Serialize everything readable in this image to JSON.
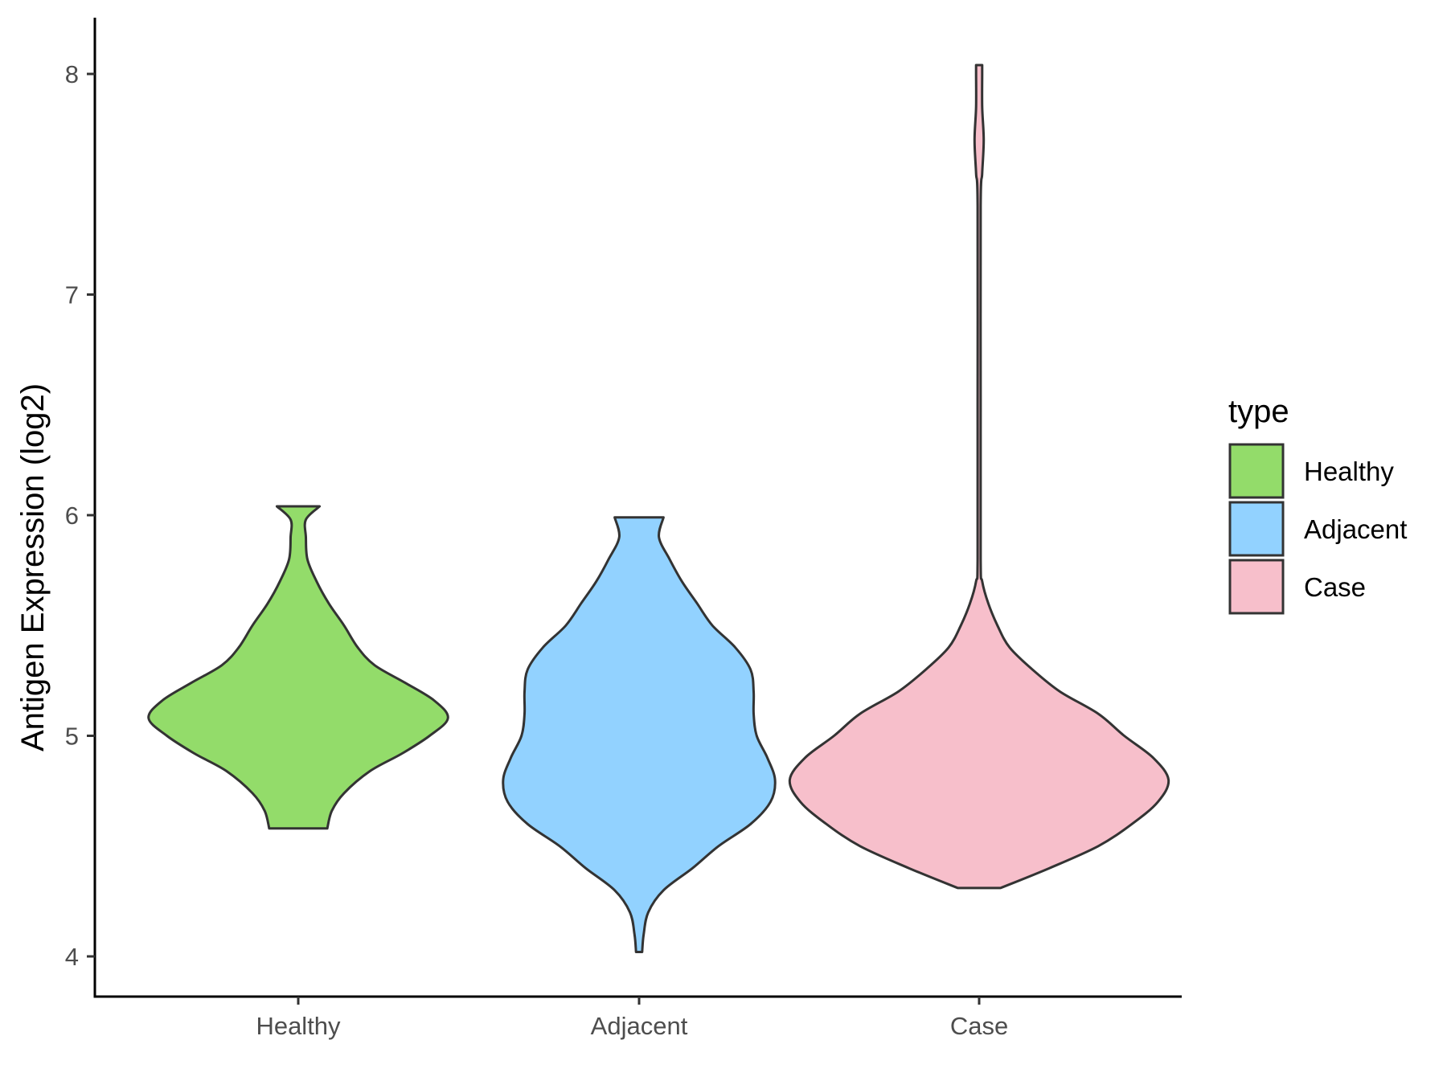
{
  "chart_data": {
    "type": "violin",
    "xlabel": "",
    "ylabel": "Antigen Expression (log2)",
    "ylim": [
      3.82,
      8.25
    ],
    "yticks": [
      "4",
      "5",
      "6",
      "7",
      "8"
    ],
    "categories": [
      "Healthy",
      "Adjacent",
      "Case"
    ],
    "grid": false,
    "legend": {
      "title": "type",
      "placement": "right",
      "items": [
        {
          "label": "Healthy",
          "color": "#93DC6A"
        },
        {
          "label": "Adjacent",
          "color": "#92D2FF"
        },
        {
          "label": "Case",
          "color": "#F7BFCB"
        }
      ]
    },
    "series": [
      {
        "category": "Healthy",
        "color": "#93DC6A",
        "min": 4.58,
        "max": 6.04,
        "density": [
          [
            4.58,
            0.19
          ],
          [
            4.66,
            0.22
          ],
          [
            4.74,
            0.3
          ],
          [
            4.84,
            0.47
          ],
          [
            4.92,
            0.68
          ],
          [
            5.0,
            0.86
          ],
          [
            5.08,
            0.98
          ],
          [
            5.16,
            0.89
          ],
          [
            5.24,
            0.7
          ],
          [
            5.32,
            0.5
          ],
          [
            5.4,
            0.39
          ],
          [
            5.5,
            0.3
          ],
          [
            5.6,
            0.2
          ],
          [
            5.7,
            0.12
          ],
          [
            5.8,
            0.06
          ],
          [
            5.9,
            0.05
          ],
          [
            5.98,
            0.05
          ],
          [
            6.04,
            0.14
          ]
        ]
      },
      {
        "category": "Adjacent",
        "color": "#92D2FF",
        "min": 4.02,
        "max": 5.99,
        "density": [
          [
            4.02,
            0.02
          ],
          [
            4.1,
            0.03
          ],
          [
            4.2,
            0.06
          ],
          [
            4.3,
            0.16
          ],
          [
            4.4,
            0.35
          ],
          [
            4.5,
            0.52
          ],
          [
            4.6,
            0.73
          ],
          [
            4.7,
            0.86
          ],
          [
            4.8,
            0.89
          ],
          [
            4.9,
            0.84
          ],
          [
            5.0,
            0.77
          ],
          [
            5.1,
            0.75
          ],
          [
            5.2,
            0.75
          ],
          [
            5.3,
            0.73
          ],
          [
            5.4,
            0.63
          ],
          [
            5.5,
            0.48
          ],
          [
            5.6,
            0.38
          ],
          [
            5.7,
            0.28
          ],
          [
            5.8,
            0.2
          ],
          [
            5.9,
            0.13
          ],
          [
            5.99,
            0.16
          ]
        ]
      },
      {
        "category": "Case",
        "color": "#F7BFCB",
        "min": 4.31,
        "max": 8.04,
        "density": [
          [
            4.31,
            0.14
          ],
          [
            4.4,
            0.46
          ],
          [
            4.5,
            0.78
          ],
          [
            4.6,
            1.0
          ],
          [
            4.7,
            1.17
          ],
          [
            4.8,
            1.24
          ],
          [
            4.9,
            1.14
          ],
          [
            5.0,
            0.95
          ],
          [
            5.1,
            0.78
          ],
          [
            5.2,
            0.53
          ],
          [
            5.3,
            0.35
          ],
          [
            5.4,
            0.2
          ],
          [
            5.5,
            0.12
          ],
          [
            5.6,
            0.06
          ],
          [
            5.7,
            0.02
          ],
          [
            5.8,
            0.01
          ],
          [
            6.5,
            0.01
          ],
          [
            7.4,
            0.01
          ],
          [
            7.55,
            0.02
          ],
          [
            7.7,
            0.03
          ],
          [
            7.85,
            0.02
          ],
          [
            8.0,
            0.02
          ],
          [
            8.04,
            0.02
          ]
        ]
      }
    ]
  }
}
